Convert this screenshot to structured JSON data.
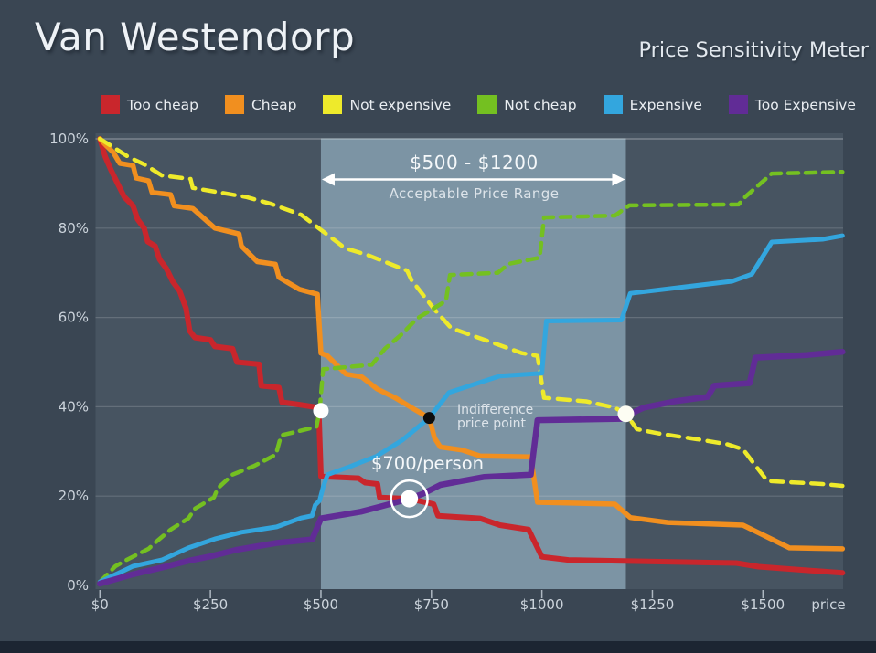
{
  "header": {
    "title": "Van Westendorp",
    "subtitle": "Price Sensitivity Meter"
  },
  "colors": {
    "page_bg": "#3a4653",
    "plot_bg": "#475461",
    "band_fill": "#7c94a4",
    "gridline": "rgba(255,255,255,0.16)",
    "gridline_top": "rgba(255,255,255,0.35)",
    "tick": "#aeb8c2",
    "axis_text": "#ccd4dc",
    "annotation_white": "#ffffff",
    "dot_black": "#0d0d0d",
    "bottom_bar": "#1c2532"
  },
  "legend": {
    "items": [
      {
        "label": "Too cheap",
        "color": "#c9262c"
      },
      {
        "label": "Cheap",
        "color": "#f18f1f"
      },
      {
        "label": "Not expensive",
        "color": "#eeea2b"
      },
      {
        "label": "Not cheap",
        "color": "#74c021"
      },
      {
        "label": "Expensive",
        "color": "#33a6de"
      },
      {
        "label": "Too Expensive",
        "color": "#612c96"
      }
    ]
  },
  "chart_data": {
    "type": "line",
    "title": "Van Westendorp Price Sensitivity Meter",
    "xlabel": "price",
    "ylabel": "",
    "xlim": [
      0,
      1680
    ],
    "ylim": [
      0,
      100
    ],
    "grid": true,
    "legend_position": "top",
    "x_ticks": [
      {
        "price": 0,
        "label": "$0"
      },
      {
        "price": 250,
        "label": "$250"
      },
      {
        "price": 500,
        "label": "$500"
      },
      {
        "price": 750,
        "label": "$750"
      },
      {
        "price": 1000,
        "label": "$1000"
      },
      {
        "price": 1250,
        "label": "$1250"
      },
      {
        "price": 1500,
        "label": "$1500"
      }
    ],
    "y_ticks": [
      {
        "pct": 0,
        "label": "0%"
      },
      {
        "pct": 20,
        "label": "20%"
      },
      {
        "pct": 40,
        "label": "40%"
      },
      {
        "pct": 60,
        "label": "60%"
      },
      {
        "pct": 80,
        "label": "80%"
      },
      {
        "pct": 100,
        "label": "100%"
      }
    ],
    "acceptable_range": {
      "min": 500,
      "max": 1190,
      "label": "$500 - $1200",
      "sublabel": "Acceptable Price Range"
    },
    "annotations": {
      "optimal": {
        "price": 700,
        "pct": 19.4,
        "label": "$700/person"
      },
      "indifference": {
        "price": 745,
        "pct": 37.5,
        "line1": "Indifference",
        "line2": "price point"
      },
      "marginal_cheapness": {
        "price": 500,
        "pct": 39.1
      },
      "marginal_expensiveness": {
        "price": 1190,
        "pct": 38.4
      }
    },
    "series": [
      {
        "name": "Too cheap",
        "slug": "too-cheap",
        "color": "#c9262c",
        "width": 6,
        "dash": null,
        "points": [
          [
            0,
            100
          ],
          [
            12,
            96
          ],
          [
            25,
            93
          ],
          [
            40,
            90
          ],
          [
            55,
            87
          ],
          [
            75,
            85
          ],
          [
            85,
            82
          ],
          [
            100,
            80
          ],
          [
            108,
            77
          ],
          [
            125,
            76
          ],
          [
            135,
            73
          ],
          [
            150,
            71
          ],
          [
            165,
            68
          ],
          [
            180,
            66
          ],
          [
            195,
            62
          ],
          [
            203,
            57
          ],
          [
            215,
            55.5
          ],
          [
            250,
            55
          ],
          [
            260,
            53.5
          ],
          [
            300,
            53
          ],
          [
            310,
            50
          ],
          [
            360,
            49.5
          ],
          [
            365,
            44.7
          ],
          [
            405,
            44.3
          ],
          [
            412,
            41
          ],
          [
            450,
            40.5
          ],
          [
            495,
            39.8
          ],
          [
            500,
            24.4
          ],
          [
            585,
            24
          ],
          [
            600,
            23
          ],
          [
            628,
            22.7
          ],
          [
            633,
            19.7
          ],
          [
            700,
            19.4
          ],
          [
            755,
            18.2
          ],
          [
            765,
            15.6
          ],
          [
            860,
            15
          ],
          [
            905,
            13.5
          ],
          [
            970,
            12.5
          ],
          [
            1000,
            6.4
          ],
          [
            1060,
            5.7
          ],
          [
            1440,
            5
          ],
          [
            1490,
            4.2
          ],
          [
            1680,
            2.8
          ]
        ]
      },
      {
        "name": "Cheap",
        "slug": "cheap",
        "color": "#f18f1f",
        "width": 5.5,
        "dash": null,
        "points": [
          [
            0,
            100
          ],
          [
            15,
            98.4
          ],
          [
            30,
            97
          ],
          [
            45,
            94.5
          ],
          [
            75,
            94
          ],
          [
            82,
            91.2
          ],
          [
            110,
            90.6
          ],
          [
            118,
            88
          ],
          [
            160,
            87.5
          ],
          [
            168,
            85
          ],
          [
            210,
            84.4
          ],
          [
            260,
            80
          ],
          [
            315,
            78.7
          ],
          [
            320,
            76
          ],
          [
            356,
            72.5
          ],
          [
            397,
            71.9
          ],
          [
            405,
            69
          ],
          [
            451,
            66.3
          ],
          [
            492,
            65.2
          ],
          [
            500,
            52
          ],
          [
            515,
            51.4
          ],
          [
            557,
            47.3
          ],
          [
            592,
            46.7
          ],
          [
            627,
            44
          ],
          [
            668,
            42
          ],
          [
            710,
            39.5
          ],
          [
            745,
            37.5
          ],
          [
            757,
            33
          ],
          [
            770,
            31
          ],
          [
            820,
            30.3
          ],
          [
            860,
            29
          ],
          [
            975,
            28.8
          ],
          [
            990,
            18.6
          ],
          [
            1165,
            18.2
          ],
          [
            1200,
            15.2
          ],
          [
            1285,
            14.1
          ],
          [
            1455,
            13.5
          ],
          [
            1560,
            8.4
          ],
          [
            1680,
            8.2
          ]
        ]
      },
      {
        "name": "Not expensive",
        "slug": "not-expensive",
        "color": "#eeea2b",
        "width": 4.5,
        "dash": "13 9",
        "points": [
          [
            0,
            100
          ],
          [
            32,
            98
          ],
          [
            65,
            95.9
          ],
          [
            100,
            94.3
          ],
          [
            140,
            91.8
          ],
          [
            205,
            91
          ],
          [
            210,
            89
          ],
          [
            270,
            88
          ],
          [
            330,
            87
          ],
          [
            385,
            85.5
          ],
          [
            455,
            83
          ],
          [
            495,
            80
          ],
          [
            555,
            75.5
          ],
          [
            605,
            74
          ],
          [
            695,
            70.5
          ],
          [
            705,
            68.4
          ],
          [
            755,
            62
          ],
          [
            795,
            57.6
          ],
          [
            890,
            54.3
          ],
          [
            955,
            52
          ],
          [
            990,
            51.4
          ],
          [
            1005,
            42
          ],
          [
            1100,
            41.2
          ],
          [
            1165,
            39.8
          ],
          [
            1190,
            38.4
          ],
          [
            1215,
            35
          ],
          [
            1265,
            34
          ],
          [
            1360,
            32.6
          ],
          [
            1420,
            31.6
          ],
          [
            1455,
            30.5
          ],
          [
            1510,
            23.4
          ],
          [
            1635,
            22.7
          ],
          [
            1680,
            22.3
          ]
        ]
      },
      {
        "name": "Not cheap",
        "slug": "not-cheap",
        "color": "#74c021",
        "width": 4.5,
        "dash": "11 8",
        "points": [
          [
            0,
            0.8
          ],
          [
            35,
            4.3
          ],
          [
            60,
            5.7
          ],
          [
            110,
            8.2
          ],
          [
            130,
            10
          ],
          [
            160,
            12.5
          ],
          [
            200,
            15
          ],
          [
            215,
            17.2
          ],
          [
            258,
            19.7
          ],
          [
            266,
            21.7
          ],
          [
            300,
            24.8
          ],
          [
            350,
            26.8
          ],
          [
            398,
            29.3
          ],
          [
            410,
            33.6
          ],
          [
            490,
            35.5
          ],
          [
            497,
            39.1
          ],
          [
            505,
            48.4
          ],
          [
            615,
            49.4
          ],
          [
            645,
            53
          ],
          [
            680,
            56
          ],
          [
            718,
            59.8
          ],
          [
            783,
            63.7
          ],
          [
            792,
            69.5
          ],
          [
            900,
            70
          ],
          [
            925,
            72
          ],
          [
            995,
            73.4
          ],
          [
            1005,
            82.4
          ],
          [
            1165,
            82.8
          ],
          [
            1198,
            85.1
          ],
          [
            1445,
            85.3
          ],
          [
            1460,
            87
          ],
          [
            1520,
            92.2
          ],
          [
            1680,
            92.6
          ]
        ]
      },
      {
        "name": "Expensive",
        "slug": "expensive",
        "color": "#33a6de",
        "width": 5,
        "dash": null,
        "points": [
          [
            0,
            0.8
          ],
          [
            75,
            4.3
          ],
          [
            140,
            5.7
          ],
          [
            200,
            8.4
          ],
          [
            260,
            10.4
          ],
          [
            320,
            11.9
          ],
          [
            360,
            12.5
          ],
          [
            400,
            13.1
          ],
          [
            455,
            15.1
          ],
          [
            480,
            15.6
          ],
          [
            487,
            18
          ],
          [
            497,
            19
          ],
          [
            505,
            22
          ],
          [
            515,
            24.8
          ],
          [
            560,
            26.4
          ],
          [
            625,
            28.9
          ],
          [
            685,
            32.6
          ],
          [
            745,
            37.5
          ],
          [
            790,
            43.2
          ],
          [
            905,
            46.9
          ],
          [
            1000,
            47.5
          ],
          [
            1010,
            59.2
          ],
          [
            1180,
            59.4
          ],
          [
            1200,
            65.4
          ],
          [
            1430,
            68.1
          ],
          [
            1475,
            69.7
          ],
          [
            1520,
            76.9
          ],
          [
            1635,
            77.5
          ],
          [
            1680,
            78.3
          ]
        ]
      },
      {
        "name": "Too Expensive",
        "slug": "too-expensive",
        "color": "#612c96",
        "width": 6.5,
        "dash": null,
        "points": [
          [
            0,
            0.4
          ],
          [
            75,
            2.5
          ],
          [
            140,
            4
          ],
          [
            200,
            5.5
          ],
          [
            250,
            6.5
          ],
          [
            310,
            8
          ],
          [
            400,
            9.5
          ],
          [
            480,
            10.3
          ],
          [
            500,
            15
          ],
          [
            590,
            16.5
          ],
          [
            640,
            17.8
          ],
          [
            700,
            19.4
          ],
          [
            730,
            20.5
          ],
          [
            770,
            22.5
          ],
          [
            820,
            23.4
          ],
          [
            870,
            24.3
          ],
          [
            975,
            24.8
          ],
          [
            990,
            37
          ],
          [
            1180,
            37.3
          ],
          [
            1200,
            38.4
          ],
          [
            1230,
            39.8
          ],
          [
            1300,
            41.2
          ],
          [
            1375,
            42.2
          ],
          [
            1390,
            44.7
          ],
          [
            1470,
            45.3
          ],
          [
            1483,
            51
          ],
          [
            1600,
            51.6
          ],
          [
            1680,
            52.3
          ]
        ]
      }
    ]
  }
}
